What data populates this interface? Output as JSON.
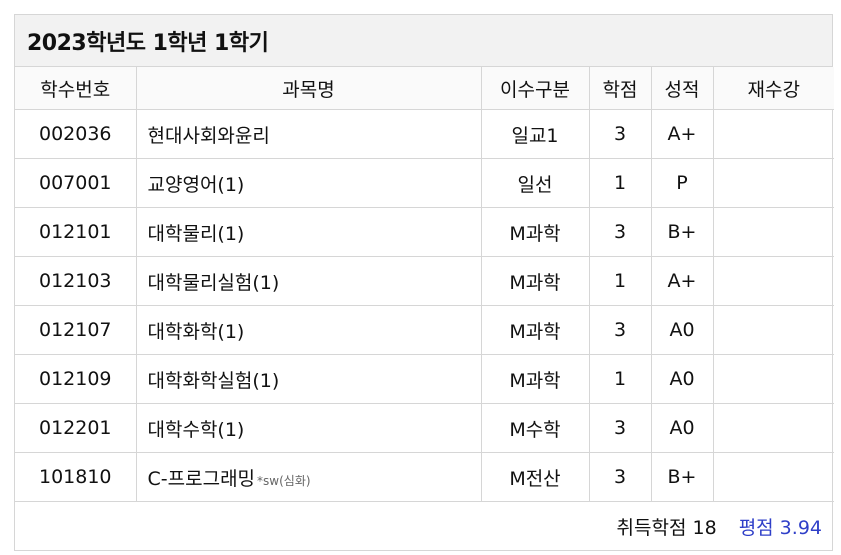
{
  "header": {
    "title": "2023학년도 1학년 1학기"
  },
  "columns": [
    "학수번호",
    "과목명",
    "이수구분",
    "학점",
    "성적",
    "재수강"
  ],
  "rows": [
    {
      "code": "002036",
      "name": "현대사회와윤리",
      "note": "",
      "category": "일교1",
      "credits": "3",
      "grade": "A+",
      "retake": ""
    },
    {
      "code": "007001",
      "name": "교양영어(1)",
      "note": "",
      "category": "일선",
      "credits": "1",
      "grade": "P",
      "retake": ""
    },
    {
      "code": "012101",
      "name": "대학물리(1)",
      "note": "",
      "category": "M과학",
      "credits": "3",
      "grade": "B+",
      "retake": ""
    },
    {
      "code": "012103",
      "name": "대학물리실험(1)",
      "note": "",
      "category": "M과학",
      "credits": "1",
      "grade": "A+",
      "retake": ""
    },
    {
      "code": "012107",
      "name": "대학화학(1)",
      "note": "",
      "category": "M과학",
      "credits": "3",
      "grade": "A0",
      "retake": ""
    },
    {
      "code": "012109",
      "name": "대학화학실험(1)",
      "note": "",
      "category": "M과학",
      "credits": "1",
      "grade": "A0",
      "retake": ""
    },
    {
      "code": "012201",
      "name": "대학수학(1)",
      "note": "",
      "category": "M수학",
      "credits": "3",
      "grade": "A0",
      "retake": ""
    },
    {
      "code": "101810",
      "name": "C-프로그래밍",
      "note": "*sw(심화)",
      "category": "M전산",
      "credits": "3",
      "grade": "B+",
      "retake": ""
    }
  ],
  "footer": {
    "credits_text": "취득학점 18",
    "gpa_text": "평점 3.94"
  },
  "colors": {
    "gpa": "#2f3fc8",
    "border": "#d6d6d6",
    "header_bg": "#f2f2f2"
  }
}
